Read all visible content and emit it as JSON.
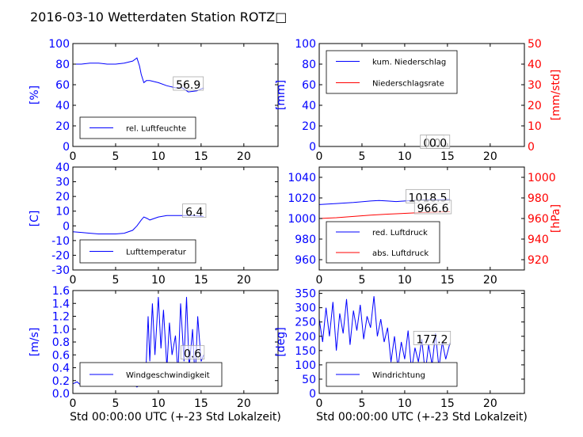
{
  "title": "2016-03-10 Wetterdaten Station ROTZ□",
  "colors": {
    "blue": "#0000ff",
    "red": "#ff0000",
    "light_blue": "#8080ff"
  },
  "chart_data": [
    {
      "id": "humidity",
      "type": "line",
      "xlim": [
        0,
        24
      ],
      "x_ticks": [
        0,
        5,
        10,
        15,
        20
      ],
      "ylim": [
        0,
        100
      ],
      "y_ticks": [
        0,
        20,
        40,
        60,
        80,
        100
      ],
      "ylabel": "[%]",
      "legend": "lower-left",
      "series": [
        {
          "name": "rel. Luftfeuchte",
          "color": "#0000ff",
          "x": [
            0,
            1,
            2,
            3,
            4,
            5,
            6,
            7,
            7.5,
            7.8,
            8.0,
            8.3,
            8.6,
            9,
            10,
            11,
            12,
            12.8,
            13.5,
            14.5,
            15.3
          ],
          "y": [
            80,
            80,
            81,
            81,
            80,
            80,
            81,
            83,
            86,
            78,
            70,
            62,
            64,
            64,
            62,
            59,
            57,
            57,
            53,
            54,
            57
          ]
        }
      ],
      "annotations": [
        {
          "text": "56.9",
          "x": 13.5,
          "y": 60
        }
      ]
    },
    {
      "id": "precip",
      "type": "line",
      "xlim": [
        0,
        24
      ],
      "x_ticks": [
        0,
        5,
        10,
        15,
        20
      ],
      "ylim": [
        0,
        100
      ],
      "y_ticks": [
        0,
        20,
        40,
        60,
        80,
        100
      ],
      "ylabel": "[mm]",
      "ylim2": [
        0,
        50
      ],
      "y2_ticks": [
        0,
        10,
        20,
        30,
        40,
        50
      ],
      "ylabel2": "[mm/std]",
      "legend": "top-left",
      "series": [
        {
          "name": "kum. Niederschlag",
          "color": "#0000ff",
          "x": [
            0,
            15.3
          ],
          "y": [
            0,
            0
          ]
        },
        {
          "name": "Niederschlagsrate",
          "color": "#ff0000",
          "axis": "right",
          "x": [
            0,
            15.3
          ],
          "y": [
            0,
            0
          ]
        }
      ],
      "annotations": [
        {
          "text": "0.0",
          "x": 13.2,
          "y": 3.5
        },
        {
          "text": "0.0",
          "x": 13.9,
          "y": 3.5
        }
      ]
    },
    {
      "id": "temperature",
      "type": "line",
      "xlim": [
        0,
        24
      ],
      "x_ticks": [
        0,
        5,
        10,
        15,
        20
      ],
      "ylim": [
        -30,
        40
      ],
      "y_ticks": [
        -30,
        -20,
        -10,
        0,
        10,
        20,
        30,
        40
      ],
      "ylabel": "[C]",
      "legend": "lower-left",
      "series": [
        {
          "name": "Lufttemperatur",
          "color": "#0000ff",
          "x": [
            0,
            1,
            2,
            3,
            4,
            5,
            6,
            7,
            7.5,
            8,
            8.3,
            8.7,
            9,
            10,
            11,
            12,
            13,
            14,
            15.3
          ],
          "y": [
            -4,
            -4.5,
            -5,
            -5.5,
            -5.5,
            -5.5,
            -5,
            -3,
            0,
            4,
            6,
            5,
            4,
            6,
            7,
            7,
            7,
            7,
            6.4
          ]
        }
      ],
      "annotations": [
        {
          "text": "6.4",
          "x": 14.2,
          "y": 9.5
        }
      ]
    },
    {
      "id": "pressure",
      "type": "line",
      "xlim": [
        0,
        24
      ],
      "x_ticks": [
        0,
        5,
        10,
        15,
        20
      ],
      "ylim": [
        950,
        1050
      ],
      "y_ticks": [
        960,
        980,
        1000,
        1020,
        1040
      ],
      "ylim2": [
        910,
        1010
      ],
      "y2_ticks": [
        920,
        940,
        960,
        980,
        1000
      ],
      "ylabel2": "[hPa]",
      "legend": "lower-left",
      "series": [
        {
          "name": "red. Luftdruck",
          "color": "#0000ff",
          "x": [
            0,
            2,
            4,
            6,
            7,
            8,
            9,
            10,
            11,
            12,
            13,
            14,
            15.3
          ],
          "y": [
            1013.5,
            1014.5,
            1015.5,
            1017,
            1017.5,
            1017,
            1016.5,
            1017,
            1017.5,
            1018,
            1018.2,
            1018.3,
            1018.5
          ]
        },
        {
          "name": "abs. Luftdruck",
          "color": "#ff0000",
          "axis": "right",
          "x": [
            0,
            2,
            4,
            6,
            8,
            10,
            12,
            14,
            15.3
          ],
          "y": [
            960,
            960.8,
            962,
            963.2,
            964.2,
            965,
            965.8,
            966.3,
            966.6
          ]
        }
      ],
      "annotations": [
        {
          "text": "1018.5",
          "x": 12.7,
          "y": 1020.5
        },
        {
          "text": "966.6",
          "x": 13.3,
          "y": 1010
        }
      ]
    },
    {
      "id": "wind_speed",
      "type": "line",
      "xlim": [
        0,
        24
      ],
      "x_ticks": [
        0,
        5,
        10,
        15,
        20
      ],
      "ylim": [
        0,
        1.6
      ],
      "y_ticks": [
        0.0,
        0.2,
        0.4,
        0.6,
        0.8,
        1.0,
        1.2,
        1.4,
        1.6
      ],
      "ylabel": "[m/s]",
      "xlabel": "Std 00:00:00 UTC (+-23 Std Lokalzeit)",
      "legend": "lower-left",
      "series": [
        {
          "name": "Windgeschwindigkeit",
          "color": "#0000ff",
          "x": [
            0,
            0.5,
            1,
            1.5,
            2,
            2.5,
            3,
            3.5,
            4,
            4.5,
            5,
            5.5,
            6,
            6.5,
            7,
            7.5,
            8,
            8.5,
            8.8,
            9,
            9.3,
            9.6,
            10,
            10.3,
            10.6,
            11,
            11.3,
            11.6,
            12,
            12.3,
            12.6,
            13,
            13.3,
            13.6,
            14,
            14.3,
            14.6,
            15,
            15.3
          ],
          "y": [
            0.15,
            0.18,
            0.12,
            0.2,
            0.25,
            0.15,
            0.3,
            0.2,
            0.35,
            0.25,
            0.4,
            0.3,
            0.2,
            0.25,
            0.15,
            0.1,
            0.15,
            0.2,
            1.2,
            0.5,
            1.4,
            0.6,
            1.5,
            0.7,
            1.3,
            0.4,
            1.1,
            0.6,
            0.9,
            0.3,
            1.4,
            0.5,
            1.5,
            0.4,
            1.0,
            0.2,
            1.2,
            0.5,
            0.6
          ]
        }
      ],
      "annotations": [
        {
          "text": "0.6",
          "x": 14.0,
          "y": 0.62
        }
      ]
    },
    {
      "id": "wind_direction",
      "type": "line",
      "xlim": [
        0,
        24
      ],
      "x_ticks": [
        0,
        5,
        10,
        15,
        20
      ],
      "ylim": [
        0,
        360
      ],
      "y_ticks": [
        0,
        50,
        100,
        150,
        200,
        250,
        300,
        350
      ],
      "ylabel": "[deg]",
      "xlabel": "Std 00:00:00 UTC (+-23 Std Lokalzeit)",
      "legend": "lower-left",
      "series": [
        {
          "name": "Windrichtung",
          "color": "#0000ff",
          "x": [
            0,
            0.4,
            0.8,
            1.2,
            1.6,
            2,
            2.4,
            2.8,
            3.2,
            3.6,
            4,
            4.4,
            4.8,
            5.2,
            5.6,
            6,
            6.4,
            6.8,
            7.2,
            7.6,
            8,
            8.4,
            8.8,
            9.2,
            9.6,
            10,
            10.4,
            10.8,
            11.2,
            11.6,
            12,
            12.4,
            12.8,
            13.2,
            13.6,
            14,
            14.4,
            14.8,
            15.3
          ],
          "y": [
            260,
            180,
            300,
            200,
            320,
            150,
            280,
            210,
            330,
            170,
            290,
            220,
            310,
            190,
            270,
            230,
            340,
            200,
            260,
            180,
            230,
            110,
            200,
            90,
            180,
            120,
            220,
            80,
            160,
            110,
            190,
            70,
            170,
            100,
            210,
            90,
            180,
            120,
            177
          ]
        }
      ],
      "annotations": [
        {
          "text": "177.2",
          "x": 13.2,
          "y": 190
        }
      ]
    }
  ]
}
